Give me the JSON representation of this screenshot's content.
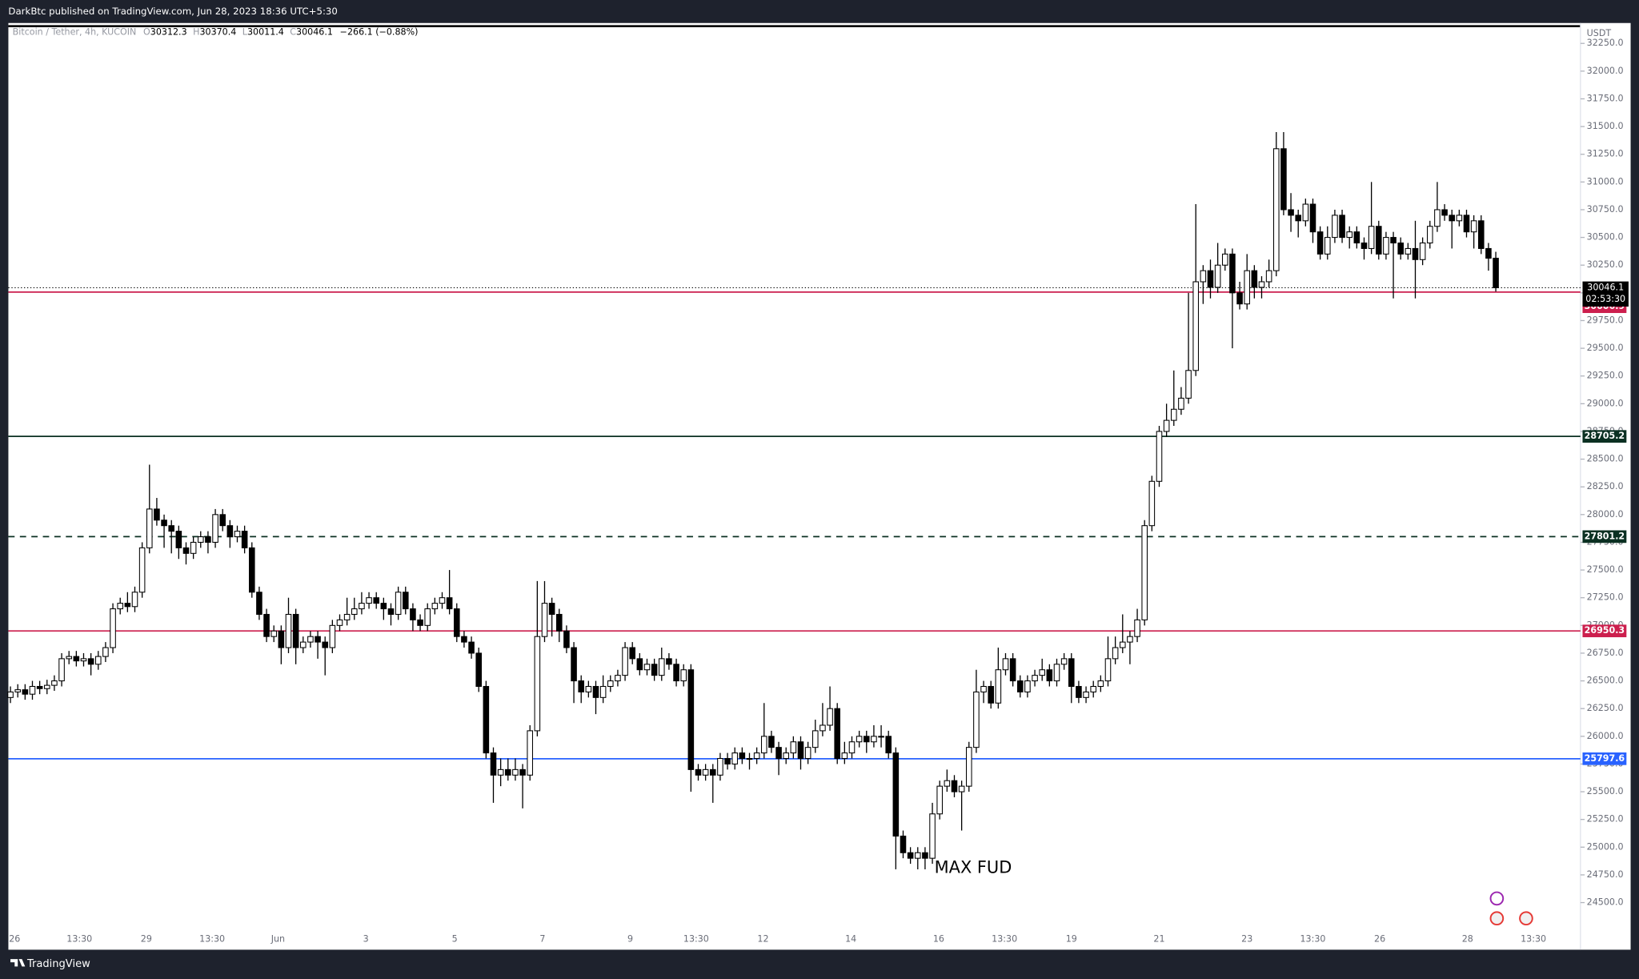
{
  "chart_data": {
    "type": "candlestick",
    "header": "DarkBtc published on TradingView.com, Jun 28, 2023 18:36 UTC+5:30",
    "symbol": "Bitcoin / Tether, 4h, KUCOIN",
    "ohlc_letters": [
      "O",
      "H",
      "L",
      "C"
    ],
    "change": "−266.1 (−0.88%)",
    "currency": "USDT",
    "countdown": "02:53:30",
    "annotation": "MAX FUD",
    "brand": "TradingView",
    "ylim": [
      24075,
      32434
    ],
    "yticks": [
      {
        "value": 24500,
        "label": "24500.0"
      },
      {
        "value": 24750,
        "label": "24750.0"
      },
      {
        "value": 25000,
        "label": "25000.0"
      },
      {
        "value": 25250,
        "label": "25250.0"
      },
      {
        "value": 25500,
        "label": "25500.0"
      },
      {
        "value": 25750,
        "label": "25750.0"
      },
      {
        "value": 26000,
        "label": "26000.0"
      },
      {
        "value": 26250,
        "label": "26250.0"
      },
      {
        "value": 26500,
        "label": "26500.0"
      },
      {
        "value": 26750,
        "label": "26750.0"
      },
      {
        "value": 27000,
        "label": "27000.0"
      },
      {
        "value": 27250,
        "label": "27250.0"
      },
      {
        "value": 27500,
        "label": "27500.0"
      },
      {
        "value": 27750,
        "label": "27750.0"
      },
      {
        "value": 28000,
        "label": "28000.0"
      },
      {
        "value": 28250,
        "label": "28250.0"
      },
      {
        "value": 28500,
        "label": "28500.0"
      },
      {
        "value": 28750,
        "label": "28750.0"
      },
      {
        "value": 29000,
        "label": "29000.0"
      },
      {
        "value": 29250,
        "label": "29250.0"
      },
      {
        "value": 29500,
        "label": "29500.0"
      },
      {
        "value": 29750,
        "label": "29750.0"
      },
      {
        "value": 30000,
        "label": "30000.0"
      },
      {
        "value": 30250,
        "label": "30250.0"
      },
      {
        "value": 30500,
        "label": "30500.0"
      },
      {
        "value": 30750,
        "label": "30750.0"
      },
      {
        "value": 31000,
        "label": "31000.0"
      },
      {
        "value": 31250,
        "label": "31250.0"
      },
      {
        "value": 31500,
        "label": "31500.0"
      },
      {
        "value": 31750,
        "label": "31750.0"
      },
      {
        "value": 32000,
        "label": "32000.0"
      },
      {
        "value": 32250,
        "label": "32250.0"
      }
    ],
    "xtick_labels": [
      "26",
      "13:30",
      "29",
      "13:30",
      "Jun",
      "3",
      "5",
      "7",
      "9",
      "13:30",
      "12",
      "14",
      "16",
      "13:30",
      "19",
      "21",
      "23",
      "13:30",
      "26",
      "28",
      "13:30"
    ],
    "levels": [
      {
        "value": 30006.9,
        "color": "#cc1f4e",
        "style": "solid"
      },
      {
        "value": 28705.2,
        "color": "#0b3022",
        "style": "solid"
      },
      {
        "value": 27801.2,
        "color": "#0b3022",
        "style": "dashed"
      },
      {
        "value": 26950.3,
        "color": "#cc1f4e",
        "style": "solid"
      },
      {
        "value": 25797.6,
        "color": "#2962ff",
        "style": "solid"
      }
    ],
    "up_color": "#ffffff",
    "down_color": "#000000",
    "open": [
      26350,
      26400,
      26420,
      26380,
      26450,
      26430,
      26460,
      26500,
      26700,
      26720,
      26680,
      26700,
      26650,
      26720,
      26800,
      27150,
      27200,
      27170,
      27300,
      27700,
      28050,
      27950,
      27900,
      27850,
      27700,
      27650,
      27750,
      27800,
      27750,
      28000,
      27900,
      27800,
      27850,
      27700,
      27300,
      27100,
      26900,
      26950,
      26800,
      27100,
      26800,
      26850,
      26900,
      26850,
      26800,
      27000,
      27050,
      27100,
      27150,
      27200,
      27250,
      27200,
      27150,
      27100,
      27300,
      27150,
      27050,
      27000,
      27150,
      27200,
      27250,
      27150,
      26900,
      26850,
      26750,
      26450,
      25850,
      25650,
      25700,
      25650,
      25700,
      25650,
      26050,
      26900,
      27200,
      27100,
      26950,
      26800,
      26500,
      26400,
      26450,
      26350,
      26450,
      26500,
      26550,
      26800,
      26700,
      26600,
      26650,
      26550,
      26700,
      26650,
      26500,
      26600,
      25700,
      25650,
      25700,
      25650,
      25800,
      25750,
      25850,
      25800,
      25800,
      25850,
      26000,
      25900,
      25800,
      25850,
      25950,
      25800,
      25900,
      26050,
      26100,
      26250,
      25800,
      25850,
      25950,
      26000,
      25950,
      26000,
      26000,
      25850,
      25100,
      24950,
      24900,
      24950,
      24900,
      25300,
      25550,
      25600,
      25500,
      25550,
      25900,
      26400,
      26450,
      26300,
      26600,
      26700,
      26500,
      26400,
      26500,
      26550,
      26600,
      26500,
      26650,
      26700,
      26450,
      26350,
      26400,
      26450,
      26500,
      26700,
      26800,
      26850,
      26900,
      27050,
      27900,
      28300,
      28750,
      28850,
      28950,
      29050,
      29300,
      30100,
      30200,
      30050,
      30250,
      30350,
      30000,
      29900,
      30200,
      30050,
      30100,
      30200,
      31300,
      30750,
      30700,
      30650,
      30800,
      30550,
      30350,
      30500,
      30700,
      30500,
      30550,
      30450,
      30400,
      30600,
      30350,
      30500,
      30450,
      30350,
      30400,
      30300,
      30450,
      30600,
      30750,
      30700,
      30650,
      30700,
      30550,
      30650,
      30400,
      30312.3
    ],
    "high": [
      26450,
      26470,
      26470,
      26500,
      26500,
      26510,
      26550,
      26750,
      26770,
      26770,
      26750,
      26750,
      26770,
      26850,
      27200,
      27250,
      27300,
      27350,
      27750,
      28450,
      28150,
      28000,
      27950,
      27900,
      27750,
      27800,
      27850,
      27850,
      28050,
      28050,
      27950,
      27900,
      27900,
      27750,
      27350,
      27150,
      27000,
      27000,
      27250,
      27150,
      26900,
      26950,
      26950,
      26900,
      27050,
      27100,
      27250,
      27250,
      27300,
      27300,
      27300,
      27250,
      27200,
      27350,
      27350,
      27200,
      27100,
      27200,
      27250,
      27300,
      27500,
      27200,
      26950,
      26900,
      26800,
      26500,
      25900,
      25800,
      25800,
      25800,
      25750,
      26100,
      27400,
      27400,
      27250,
      27150,
      27000,
      26850,
      26550,
      26500,
      26500,
      26550,
      26550,
      26600,
      26850,
      26850,
      26750,
      26700,
      26700,
      26800,
      26750,
      26700,
      26650,
      26650,
      25750,
      25750,
      25750,
      25850,
      25850,
      25900,
      25900,
      25850,
      25900,
      26300,
      26050,
      25950,
      25900,
      26000,
      26000,
      25950,
      26150,
      26300,
      26450,
      26300,
      25950,
      26000,
      26050,
      26050,
      26100,
      26100,
      26050,
      25900,
      25150,
      25000,
      25000,
      25000,
      25400,
      25600,
      25700,
      25650,
      25600,
      25950,
      26600,
      26500,
      26500,
      26800,
      26750,
      26750,
      26550,
      26550,
      26600,
      26700,
      26650,
      26700,
      26750,
      26750,
      26500,
      26450,
      26500,
      26550,
      26900,
      26900,
      27100,
      26950,
      27150,
      27950,
      28350,
      28800,
      29000,
      29300,
      29150,
      30000,
      30800,
      30250,
      30300,
      30450,
      30400,
      30400,
      30100,
      30350,
      30250,
      30150,
      30300,
      31450,
      31450,
      30900,
      30750,
      30850,
      30850,
      30600,
      30600,
      30750,
      30750,
      30600,
      30600,
      30500,
      31000,
      30650,
      30550,
      30550,
      30500,
      30450,
      30650,
      30500,
      30650,
      31000,
      30800,
      30750,
      30750,
      30750,
      30700,
      30700,
      30450,
      30370.4
    ],
    "low": [
      26300,
      26350,
      26330,
      26330,
      26380,
      26380,
      26410,
      26450,
      26650,
      26630,
      26630,
      26550,
      26600,
      26670,
      26750,
      27100,
      27120,
      27120,
      27250,
      27650,
      27900,
      27700,
      27650,
      27600,
      27550,
      27600,
      27700,
      27650,
      27700,
      27850,
      27700,
      27750,
      27650,
      27250,
      27050,
      26850,
      26850,
      26650,
      26750,
      26650,
      26750,
      26800,
      26700,
      26550,
      26750,
      26950,
      27000,
      27050,
      27100,
      27150,
      27150,
      27050,
      27000,
      27050,
      27100,
      26950,
      26950,
      26950,
      27100,
      27150,
      27100,
      26850,
      26800,
      26700,
      26400,
      25800,
      25400,
      25550,
      25600,
      25600,
      25350,
      25600,
      26000,
      26850,
      26900,
      26850,
      26750,
      26300,
      26300,
      26350,
      26200,
      26300,
      26400,
      26450,
      26500,
      26650,
      26550,
      26550,
      26500,
      26500,
      26600,
      26450,
      26450,
      25500,
      25600,
      25600,
      25400,
      25600,
      25700,
      25700,
      25750,
      25700,
      25750,
      25800,
      25850,
      25650,
      25750,
      25800,
      25700,
      25750,
      25850,
      26000,
      26050,
      25750,
      25750,
      25800,
      25900,
      25850,
      25900,
      25900,
      25800,
      24800,
      24900,
      24850,
      24800,
      24800,
      24850,
      25250,
      25500,
      25450,
      25150,
      25500,
      25850,
      26300,
      26250,
      26250,
      26550,
      26450,
      26350,
      26350,
      26450,
      26500,
      26450,
      26450,
      26600,
      26300,
      26300,
      26300,
      26350,
      26400,
      26450,
      26650,
      26750,
      26650,
      26850,
      27000,
      27850,
      28250,
      28700,
      28800,
      28900,
      29000,
      29250,
      29900,
      29950,
      30000,
      30200,
      29500,
      29850,
      29850,
      29950,
      29950,
      30050,
      30150,
      30700,
      30550,
      30500,
      30600,
      30450,
      30300,
      30300,
      30450,
      30450,
      30400,
      30400,
      30300,
      30350,
      30300,
      30300,
      29950,
      30300,
      30300,
      29950,
      30250,
      30400,
      30550,
      30650,
      30400,
      30600,
      30500,
      30400,
      30350,
      30200,
      30011.4
    ],
    "close": [
      26400,
      26420,
      26380,
      26450,
      26430,
      26460,
      26500,
      26700,
      26720,
      26680,
      26700,
      26650,
      26720,
      26800,
      27150,
      27200,
      27170,
      27300,
      27700,
      28050,
      27950,
      27900,
      27850,
      27700,
      27650,
      27750,
      27800,
      27750,
      28000,
      27900,
      27800,
      27850,
      27700,
      27300,
      27100,
      26900,
      26950,
      26800,
      27100,
      26800,
      26850,
      26900,
      26850,
      26800,
      27000,
      27050,
      27100,
      27150,
      27200,
      27250,
      27200,
      27150,
      27100,
      27300,
      27150,
      27050,
      27000,
      27150,
      27200,
      27250,
      27150,
      26900,
      26850,
      26750,
      26450,
      25850,
      25650,
      25700,
      25650,
      25700,
      25650,
      26050,
      26900,
      27200,
      27100,
      26950,
      26800,
      26500,
      26400,
      26450,
      26350,
      26450,
      26500,
      26550,
      26800,
      26700,
      26600,
      26650,
      26550,
      26700,
      26650,
      26500,
      26600,
      25700,
      25650,
      25700,
      25650,
      25800,
      25750,
      25850,
      25800,
      25800,
      25850,
      26000,
      25900,
      25800,
      25850,
      25950,
      25800,
      25900,
      26050,
      26100,
      26250,
      25800,
      25850,
      25950,
      26000,
      25950,
      26000,
      26000,
      25850,
      25100,
      24950,
      24900,
      24950,
      24900,
      25300,
      25550,
      25600,
      25500,
      25550,
      25900,
      26400,
      26450,
      26300,
      26600,
      26700,
      26500,
      26400,
      26500,
      26550,
      26600,
      26500,
      26650,
      26700,
      26450,
      26350,
      26400,
      26450,
      26500,
      26700,
      26800,
      26850,
      26900,
      27050,
      27900,
      28300,
      28750,
      28850,
      28950,
      29050,
      29300,
      30100,
      30200,
      30050,
      30250,
      30350,
      30000,
      29900,
      30200,
      30050,
      30100,
      30200,
      31300,
      30750,
      30700,
      30650,
      30800,
      30550,
      30350,
      30500,
      30700,
      30500,
      30550,
      30450,
      30400,
      30600,
      30350,
      30500,
      30450,
      30350,
      30400,
      30300,
      30450,
      30600,
      30750,
      30700,
      30650,
      30700,
      30550,
      30650,
      30400,
      30312.3,
      30046.1
    ]
  }
}
